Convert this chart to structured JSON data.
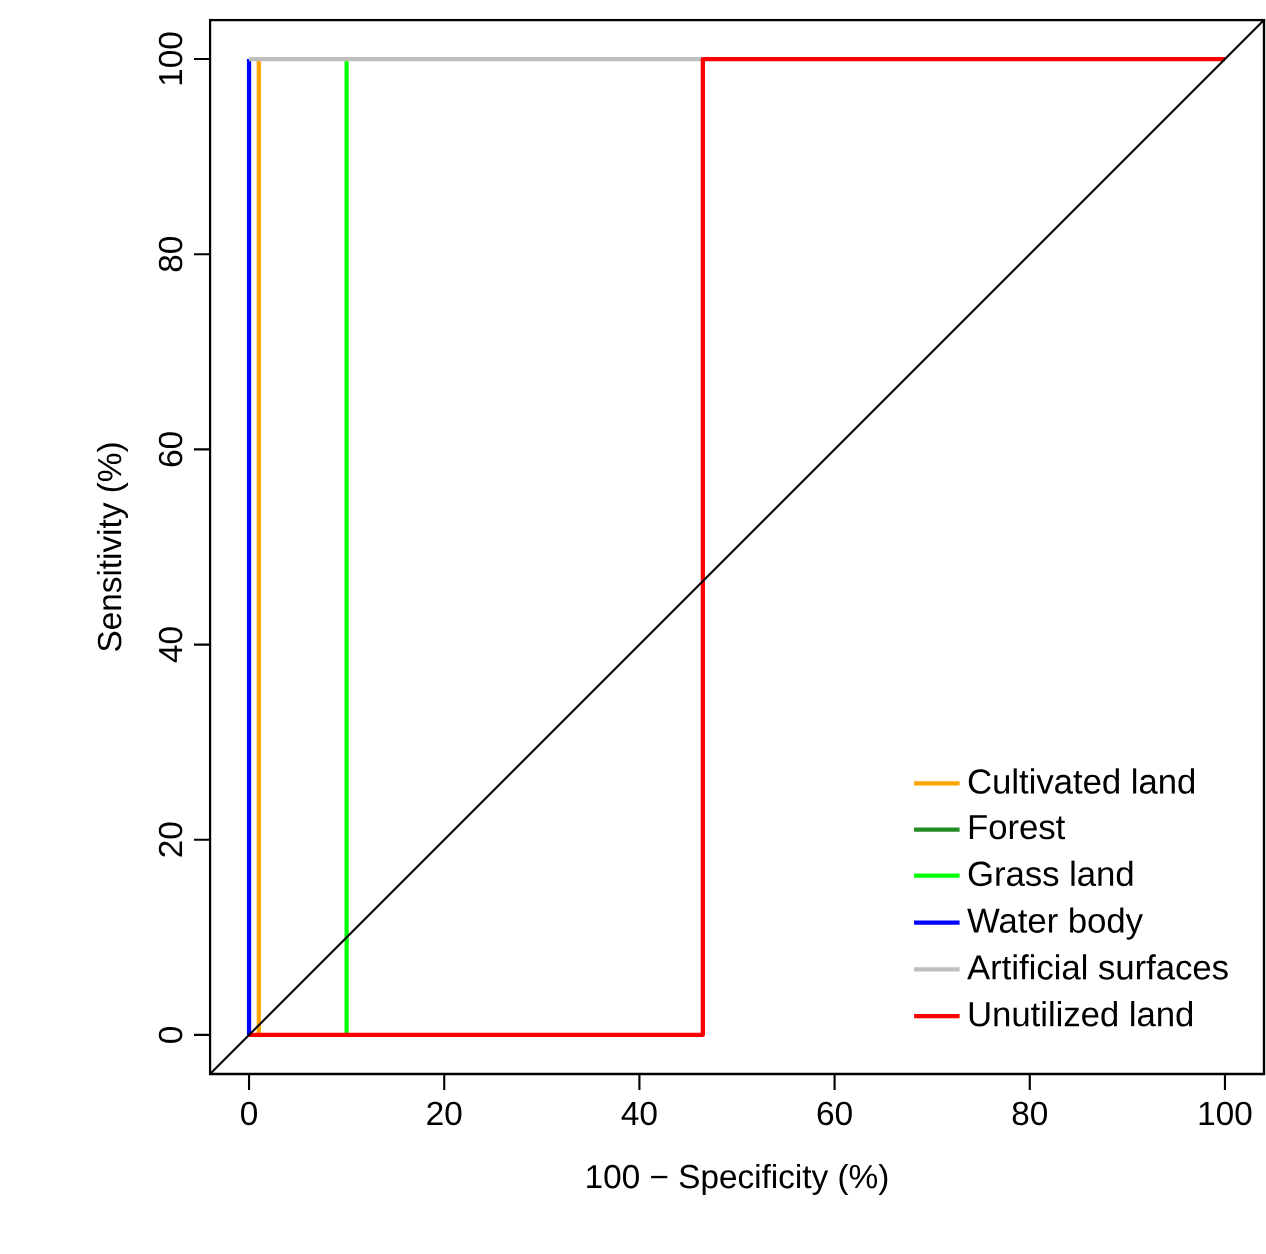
{
  "chart_data": {
    "type": "line",
    "xlabel": "100 − Specificity (%)",
    "ylabel": "Sensitivity (%)",
    "xlim": [
      -4,
      104
    ],
    "ylim": [
      -4,
      104
    ],
    "xticks": [
      0,
      20,
      40,
      60,
      80,
      100
    ],
    "yticks": [
      0,
      20,
      40,
      60,
      80,
      100
    ],
    "grid": false,
    "legend": "bottom right",
    "line_style": "solid",
    "marker": "none",
    "series": [
      {
        "name": "Cultivated land",
        "color": "#ffa500",
        "x": [
          1,
          1
        ],
        "values": [
          0,
          100
        ]
      },
      {
        "name": "Forest",
        "color": "#228b22"
      },
      {
        "name": "Grass land",
        "color": "#00ff00",
        "x": [
          10,
          10
        ],
        "values": [
          0,
          100
        ]
      },
      {
        "name": "Water body",
        "color": "#0000ff",
        "x": [
          0,
          0
        ],
        "values": [
          0,
          100
        ]
      },
      {
        "name": "Artificial surfaces",
        "color": "#bebebe",
        "x": [
          0,
          46.5
        ],
        "values": [
          100,
          100
        ]
      },
      {
        "name": "Unutilized land",
        "color": "#ff0000",
        "x": [
          0,
          46.5,
          46.5,
          100
        ],
        "values": [
          0,
          0,
          100,
          100
        ]
      },
      {
        "color": "#000000",
        "x": [
          -4,
          104
        ],
        "values": [
          -4,
          104
        ]
      }
    ]
  }
}
